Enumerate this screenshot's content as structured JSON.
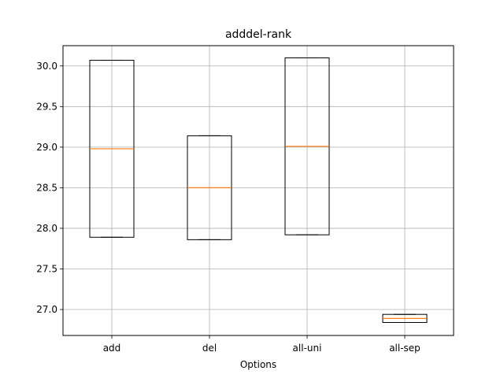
{
  "chart_data": {
    "type": "boxplot",
    "title": "adddel-rank",
    "xlabel": "Options",
    "ylabel": "",
    "ylim": [
      26.68,
      30.25
    ],
    "yticks": [
      27.0,
      27.5,
      28.0,
      28.5,
      29.0,
      29.5,
      30.0
    ],
    "ytick_labels": [
      "27.0",
      "27.5",
      "28.0",
      "28.5",
      "29.0",
      "29.5",
      "30.0"
    ],
    "grid": true,
    "categories": [
      "add",
      "del",
      "all-uni",
      "all-sep"
    ],
    "boxes": [
      {
        "label": "add",
        "whisker_low": 27.89,
        "q1": 27.89,
        "median": 28.98,
        "q3": 30.07,
        "whisker_high": 30.07
      },
      {
        "label": "del",
        "whisker_low": 27.86,
        "q1": 27.86,
        "median": 28.5,
        "q3": 29.14,
        "whisker_high": 29.14
      },
      {
        "label": "all-uni",
        "whisker_low": 27.92,
        "q1": 27.92,
        "median": 29.01,
        "q3": 30.1,
        "whisker_high": 30.1
      },
      {
        "label": "all-sep",
        "whisker_low": 26.84,
        "q1": 26.84,
        "median": 26.89,
        "q3": 26.94,
        "whisker_high": 26.94
      }
    ],
    "colors": {
      "box": "#000000",
      "median": "#ff7f0e",
      "grid": "#b0b0b0"
    }
  }
}
